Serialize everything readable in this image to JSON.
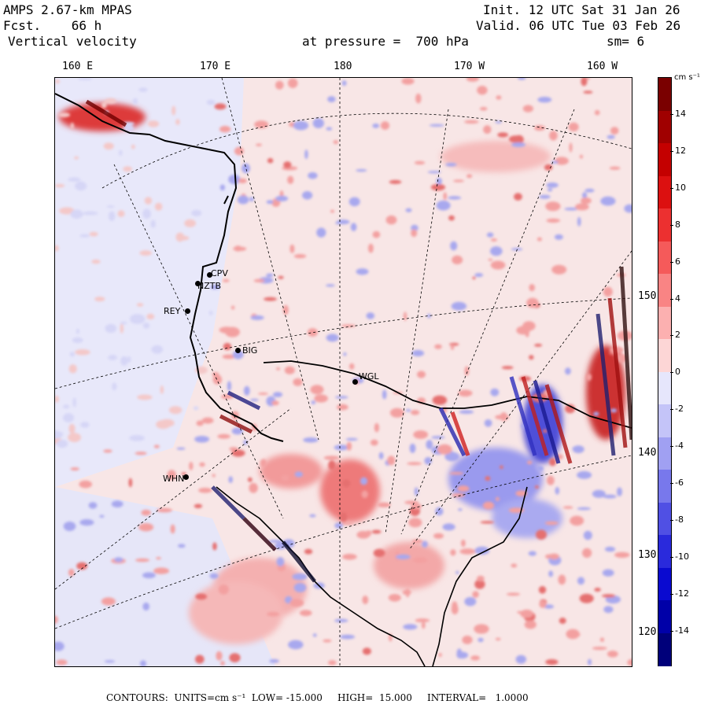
{
  "header": {
    "model": "AMPS 2.67-km MPAS",
    "fcst_label": "Fcst.",
    "fcst_value": "66 h",
    "variable": "Vertical velocity",
    "init": "Init. 12 UTC Sat 31 Jan 26",
    "valid": "Valid. 06 UTC Tue 03 Feb 26",
    "pressure": "at pressure =  700 hPa",
    "smoothing": "sm= 6"
  },
  "longitude_labels": [
    "160 E",
    "170 E",
    "180",
    "170 W",
    "160 W"
  ],
  "latitude_labels": [
    "150 W",
    "140 W",
    "130 W",
    "120 W"
  ],
  "stations": [
    "CPV",
    "NZTB",
    "REY",
    "BIG",
    "WGL",
    "WHN"
  ],
  "colorbar": {
    "units": "cm s⁻¹",
    "ticks": [
      "14",
      "12",
      "10",
      "8",
      "6",
      "4",
      "2",
      "0",
      "-2",
      "-4",
      "-6",
      "-8",
      "-10",
      "-12",
      "-14"
    ],
    "colors": [
      "#7a0000",
      "#a00000",
      "#c40000",
      "#dc1010",
      "#ec3030",
      "#f55a5a",
      "#f98484",
      "#fcb0b0",
      "#fdd6d6",
      "#e6e6fc",
      "#c4c4f8",
      "#a0a0f2",
      "#7878ec",
      "#5050e4",
      "#2a2adc",
      "#0a0ad0",
      "#0000a8",
      "#00007a"
    ]
  },
  "footer": {
    "text": "CONTOURS:  UNITS=cm s⁻¹  LOW= -15.000     HIGH=  15.000     INTERVAL=   1.0000"
  },
  "colors": {
    "updraft": "#e05050",
    "downdraft": "#4040d0",
    "background_pos": "#f8e6e6",
    "background_neg": "#e8e8fa"
  }
}
